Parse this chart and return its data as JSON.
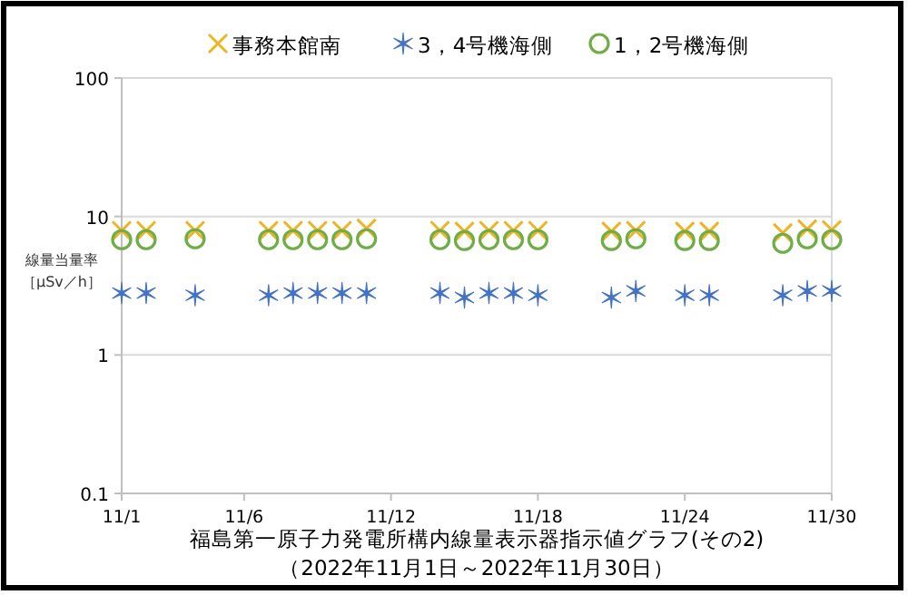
{
  "chart_data": {
    "type": "scatter",
    "title": "福島第一原子力発電所構内線量表示器指示値グラフ(その2)",
    "subtitle": "（2022年11月1日～2022年11月30日）",
    "ylabel": "線量当量率［μSv／h］",
    "x": [
      "2022-11-01",
      "2022-11-02",
      "2022-11-04",
      "2022-11-07",
      "2022-11-08",
      "2022-11-09",
      "2022-11-10",
      "2022-11-11",
      "2022-11-14",
      "2022-11-15",
      "2022-11-16",
      "2022-11-17",
      "2022-11-18",
      "2022-11-21",
      "2022-11-22",
      "2022-11-24",
      "2022-11-25",
      "2022-11-28",
      "2022-11-29",
      "2022-11-30"
    ],
    "series": [
      {
        "name": "事務本館南",
        "color": "#f0b323",
        "marker": "cross",
        "values": [
          7.9,
          7.9,
          7.9,
          7.9,
          7.9,
          7.9,
          7.9,
          8.2,
          7.9,
          7.8,
          7.9,
          7.9,
          7.9,
          7.8,
          7.9,
          7.8,
          7.8,
          7.6,
          8.1,
          8.0
        ]
      },
      {
        "name": "3，4号機海側",
        "color": "#4472c4",
        "values": [
          2.8,
          2.8,
          2.7,
          2.7,
          2.8,
          2.8,
          2.8,
          2.8,
          2.8,
          2.6,
          2.8,
          2.8,
          2.7,
          2.6,
          2.9,
          2.7,
          2.7,
          2.7,
          2.9,
          2.9
        ]
      },
      {
        "name": "1，2号機海側",
        "color": "#70ad47",
        "marker": "circle",
        "values": [
          6.8,
          6.8,
          6.9,
          6.8,
          6.8,
          6.8,
          6.8,
          6.9,
          6.8,
          6.7,
          6.8,
          6.8,
          6.8,
          6.7,
          6.9,
          6.7,
          6.7,
          6.4,
          6.9,
          6.8
        ]
      }
    ],
    "log": "y",
    "ylim": [
      0.1,
      100
    ],
    "yticks": [
      {
        "value": 0.1,
        "label": "0.1"
      },
      {
        "value": 1,
        "label": "1"
      },
      {
        "value": 10,
        "label": "10"
      },
      {
        "value": 100,
        "label": "100"
      }
    ],
    "xlim": [
      "2022-11-01",
      "2022-11-30"
    ],
    "xticks": [
      {
        "value": "2022-11-01",
        "label": "11/1"
      },
      {
        "value": "2022-11-06",
        "label": "11/6"
      },
      {
        "value": "2022-11-12",
        "label": "11/12"
      },
      {
        "value": "2022-11-18",
        "label": "11/18"
      },
      {
        "value": "2022-11-24",
        "label": "11/24"
      },
      {
        "value": "2022-11-30",
        "label": "11/30"
      }
    ],
    "grid": "y",
    "legend": "top"
  }
}
